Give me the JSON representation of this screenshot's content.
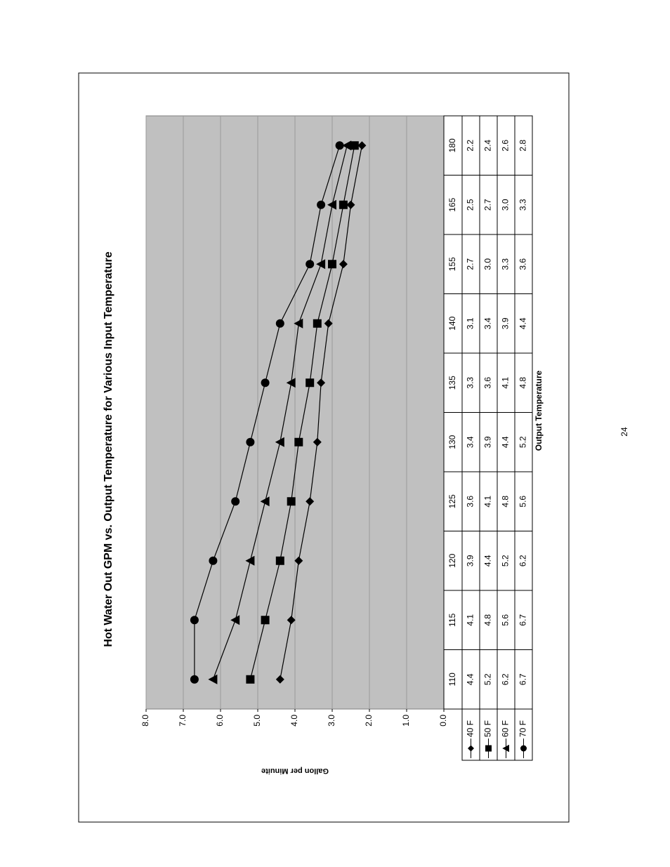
{
  "chart_data": {
    "type": "line",
    "title": "Hot Water Out GPM vs. Output Temperature for Various Input Temperature",
    "x_label": "Output Temperature",
    "y_label": "Gallon per Minuite",
    "page_number": "24",
    "categories": [
      "110",
      "115",
      "120",
      "125",
      "130",
      "135",
      "140",
      "155",
      "165",
      "180"
    ],
    "ylim": [
      0,
      8
    ],
    "yticks": [
      {
        "value": 0,
        "label": "0.0"
      },
      {
        "value": 1,
        "label": "1.0"
      },
      {
        "value": 2,
        "label": "2.0"
      },
      {
        "value": 3,
        "label": "3.0"
      },
      {
        "value": 4,
        "label": "4.0"
      },
      {
        "value": 5,
        "label": "5.0"
      },
      {
        "value": 6,
        "label": "6.0"
      },
      {
        "value": 7,
        "label": "7.0"
      },
      {
        "value": 8,
        "label": "8.0"
      }
    ],
    "grid": true,
    "series": [
      {
        "name": "40 F",
        "color": "#000000",
        "marker": "diamond",
        "values": [
          4.4,
          4.1,
          3.9,
          3.6,
          3.4,
          3.3,
          3.1,
          2.7,
          2.5,
          2.2
        ],
        "value_labels": [
          "4.4",
          "4.1",
          "3.9",
          "3.6",
          "3.4",
          "3.3",
          "3.1",
          "2.7",
          "2.5",
          "2.2"
        ]
      },
      {
        "name": "50 F",
        "color": "#000000",
        "marker": "square",
        "values": [
          5.2,
          4.8,
          4.4,
          4.1,
          3.9,
          3.6,
          3.4,
          3.0,
          2.7,
          2.4
        ],
        "value_labels": [
          "5.2",
          "4.8",
          "4.4",
          "4.1",
          "3.9",
          "3.6",
          "3.4",
          "3.0",
          "2.7",
          "2.4"
        ]
      },
      {
        "name": "60 F",
        "color": "#000000",
        "marker": "triangle",
        "values": [
          6.2,
          5.6,
          5.2,
          4.8,
          4.4,
          4.1,
          3.9,
          3.3,
          3.0,
          2.6
        ],
        "value_labels": [
          "6.2",
          "5.6",
          "5.2",
          "4.8",
          "4.4",
          "4.1",
          "3.9",
          "3.3",
          "3.0",
          "2.6"
        ]
      },
      {
        "name": "70 F",
        "color": "#000000",
        "marker": "circle",
        "values": [
          6.7,
          6.7,
          6.2,
          5.6,
          5.2,
          4.8,
          4.4,
          3.6,
          3.3,
          2.8
        ],
        "value_labels": [
          "6.7",
          "6.7",
          "6.2",
          "5.6",
          "5.2",
          "4.8",
          "4.4",
          "3.6",
          "3.3",
          "2.8"
        ]
      }
    ]
  }
}
